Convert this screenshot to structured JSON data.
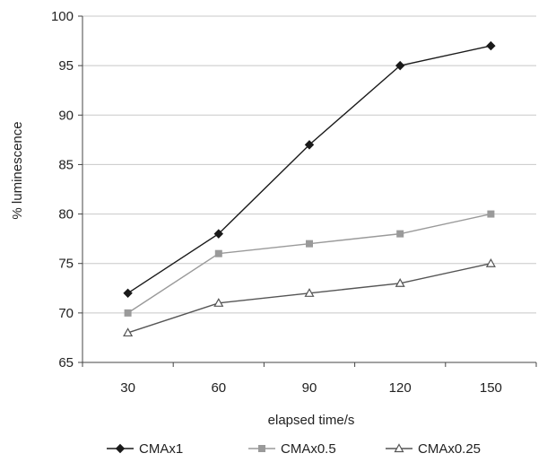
{
  "chart_data": {
    "type": "line",
    "title": "",
    "xlabel": "elapsed time/s",
    "ylabel": "% luminescence",
    "x": [
      30,
      60,
      90,
      120,
      150
    ],
    "xlim": [
      15,
      165
    ],
    "ylim": [
      65,
      100
    ],
    "y_ticks": [
      65,
      70,
      75,
      80,
      85,
      90,
      95,
      100
    ],
    "x_ticks": [
      30,
      60,
      90,
      120,
      150
    ],
    "grid": "horizontal",
    "legend_position": "bottom",
    "series": [
      {
        "name": "CMAx1",
        "marker": "diamond",
        "color": "#1a1a1a",
        "values": [
          72,
          78,
          87,
          95,
          97
        ]
      },
      {
        "name": "CMAx0.5",
        "marker": "square",
        "color": "#9a9a9a",
        "values": [
          70,
          76,
          77,
          78,
          80
        ]
      },
      {
        "name": "CMAx0.25",
        "marker": "triangle",
        "color": "#555555",
        "values": [
          68,
          71,
          72,
          73,
          75
        ]
      }
    ]
  }
}
